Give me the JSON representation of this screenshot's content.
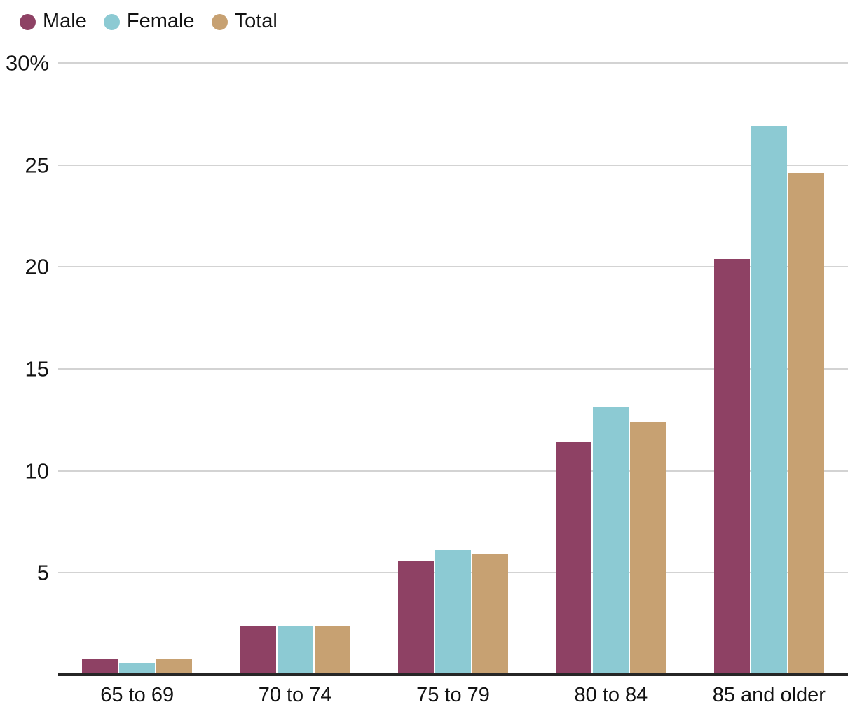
{
  "chart_data": {
    "type": "bar",
    "categories": [
      "65 to 69",
      "70 to 74",
      "75 to 79",
      "80 to 84",
      "85 and older"
    ],
    "series": [
      {
        "name": "Male",
        "color": "#8e4164",
        "values": [
          0.8,
          2.4,
          5.6,
          11.4,
          20.4
        ]
      },
      {
        "name": "Female",
        "color": "#8ccad3",
        "values": [
          0.6,
          2.4,
          6.1,
          13.1,
          26.9
        ]
      },
      {
        "name": "Total",
        "color": "#c7a172",
        "values": [
          0.8,
          2.4,
          5.9,
          12.4,
          24.6
        ]
      }
    ],
    "ylabel": "",
    "xlabel": "",
    "ylim": [
      0,
      30
    ],
    "yticks": [
      {
        "value": 30,
        "label": "30%"
      },
      {
        "value": 25,
        "label": "25"
      },
      {
        "value": 20,
        "label": "20"
      },
      {
        "value": 15,
        "label": "15"
      },
      {
        "value": 10,
        "label": "10"
      },
      {
        "value": 5,
        "label": "5"
      }
    ],
    "grid": "horizontal",
    "legend_position": "top-left"
  },
  "colors": {
    "background": "#ffffff",
    "gridline": "#d3d3d3",
    "axis_line": "#262626",
    "text": "#121212"
  }
}
